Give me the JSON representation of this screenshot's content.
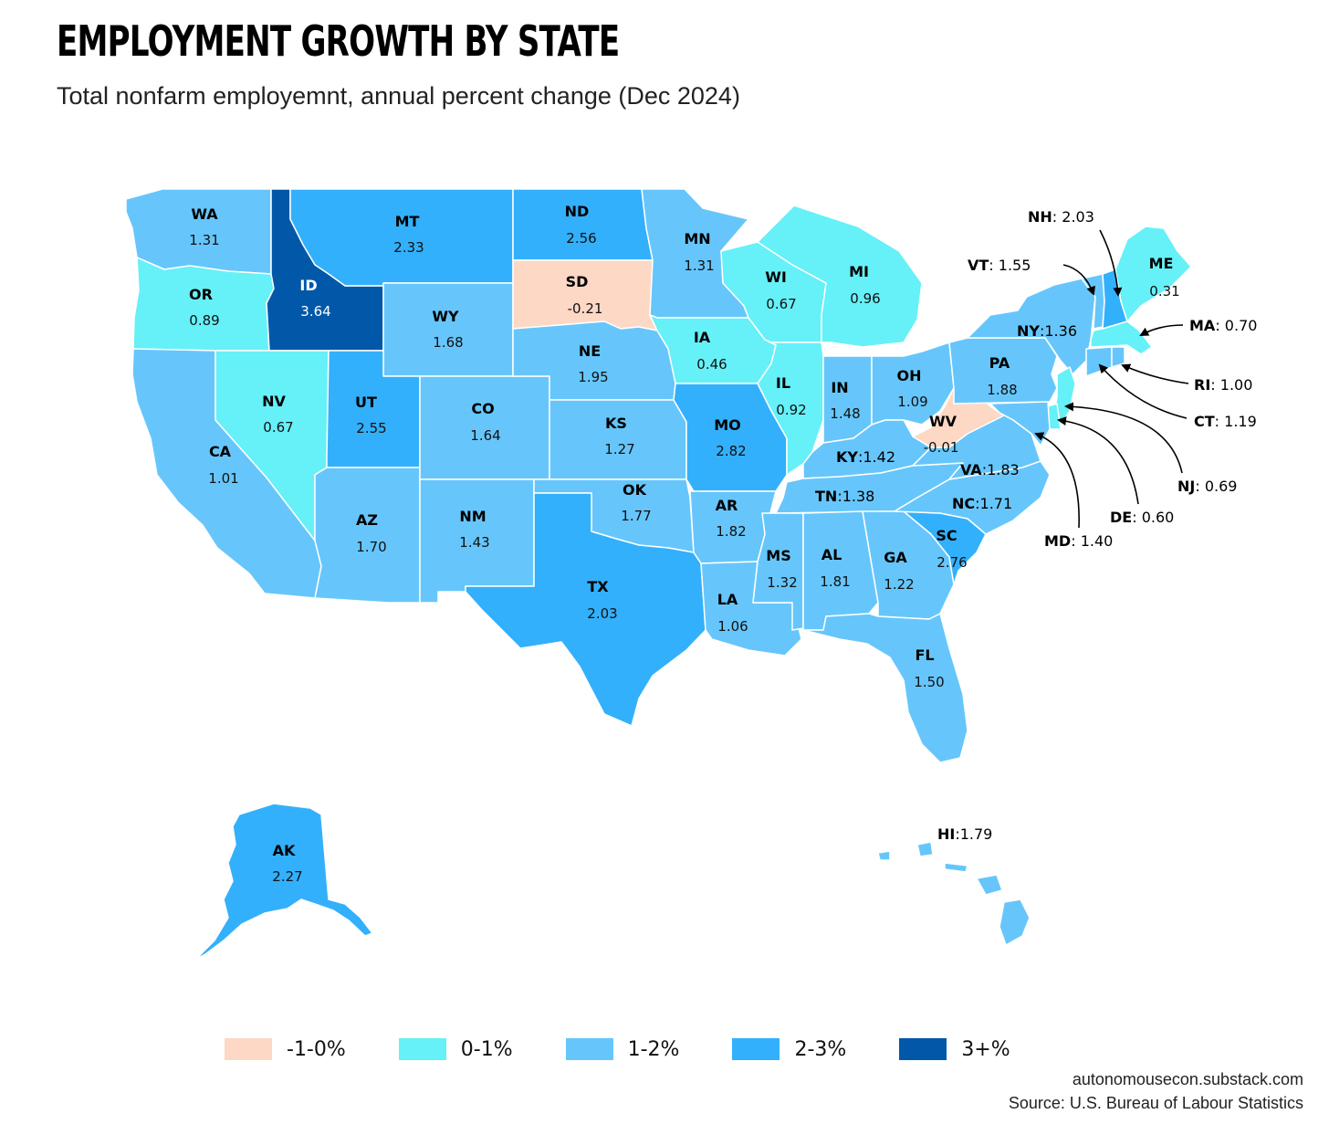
{
  "title": "EMPLOYMENT GROWTH BY STATE",
  "subtitle": "Total nonfarm employemnt, annual percent change (Dec 2024)",
  "colors": {
    "neg": "#fdd8c5",
    "c0_1": "#66f0f8",
    "c1_2": "#66c6fb",
    "c2_3": "#33b0fb",
    "c3p": "#0258a8",
    "border": "#ffffff"
  },
  "legend": [
    {
      "label": "-1-0%",
      "color": "#fdd8c5"
    },
    {
      "label": "0-1%",
      "color": "#66f0f8"
    },
    {
      "label": "1-2%",
      "color": "#66c6fb"
    },
    {
      "label": "2-3%",
      "color": "#33b0fb"
    },
    {
      "label": "3+%",
      "color": "#0258a8"
    }
  ],
  "credit_site": "autonomousecon.substack.com",
  "credit_source": "Source: U.S. Bureau of Labour Statistics",
  "states": {
    "WA": {
      "abbr": "WA",
      "value": "1.31"
    },
    "OR": {
      "abbr": "OR",
      "value": "0.89"
    },
    "CA": {
      "abbr": "CA",
      "value": "1.01"
    },
    "ID": {
      "abbr": "ID",
      "value": "3.64"
    },
    "NV": {
      "abbr": "NV",
      "value": "0.67"
    },
    "MT": {
      "abbr": "MT",
      "value": "2.33"
    },
    "WY": {
      "abbr": "WY",
      "value": "1.68"
    },
    "UT": {
      "abbr": "UT",
      "value": "2.55"
    },
    "AZ": {
      "abbr": "AZ",
      "value": "1.70"
    },
    "CO": {
      "abbr": "CO",
      "value": "1.64"
    },
    "NM": {
      "abbr": "NM",
      "value": "1.43"
    },
    "ND": {
      "abbr": "ND",
      "value": "2.56"
    },
    "SD": {
      "abbr": "SD",
      "value": "-0.21"
    },
    "NE": {
      "abbr": "NE",
      "value": "1.95"
    },
    "KS": {
      "abbr": "KS",
      "value": "1.27"
    },
    "OK": {
      "abbr": "OK",
      "value": "1.77"
    },
    "TX": {
      "abbr": "TX",
      "value": "2.03"
    },
    "MN": {
      "abbr": "MN",
      "value": "1.31"
    },
    "IA": {
      "abbr": "IA",
      "value": "0.46"
    },
    "MO": {
      "abbr": "MO",
      "value": "2.82"
    },
    "AR": {
      "abbr": "AR",
      "value": "1.82"
    },
    "LA": {
      "abbr": "LA",
      "value": "1.06"
    },
    "WI": {
      "abbr": "WI",
      "value": "0.67"
    },
    "IL": {
      "abbr": "IL",
      "value": "0.92"
    },
    "MI": {
      "abbr": "MI",
      "value": "0.96"
    },
    "IN": {
      "abbr": "IN",
      "value": "1.48"
    },
    "OH": {
      "abbr": "OH",
      "value": "1.09"
    },
    "KY": {
      "abbr": "KY",
      "value": "1.42"
    },
    "TN": {
      "abbr": "TN",
      "value": "1.38"
    },
    "MS": {
      "abbr": "MS",
      "value": "1.32"
    },
    "AL": {
      "abbr": "AL",
      "value": "1.81"
    },
    "GA": {
      "abbr": "GA",
      "value": "1.22"
    },
    "FL": {
      "abbr": "FL",
      "value": "1.50"
    },
    "SC": {
      "abbr": "SC",
      "value": "2.76"
    },
    "NC": {
      "abbr": "NC",
      "value": "1.71"
    },
    "VA": {
      "abbr": "VA",
      "value": "1.83"
    },
    "WV": {
      "abbr": "WV",
      "value": "-0.01"
    },
    "PA": {
      "abbr": "PA",
      "value": "1.88"
    },
    "NY": {
      "abbr": "NY",
      "value": "1.36"
    },
    "ME": {
      "abbr": "ME",
      "value": "0.31"
    },
    "VT": {
      "abbr": "VT",
      "value": "1.55"
    },
    "NH": {
      "abbr": "NH",
      "value": "2.03"
    },
    "MA": {
      "abbr": "MA",
      "value": "0.70"
    },
    "RI": {
      "abbr": "RI",
      "value": "1.00"
    },
    "CT": {
      "abbr": "CT",
      "value": "1.19"
    },
    "NJ": {
      "abbr": "NJ",
      "value": "0.69"
    },
    "DE": {
      "abbr": "DE",
      "value": "0.60"
    },
    "MD": {
      "abbr": "MD",
      "value": "1.40"
    },
    "AK": {
      "abbr": "AK",
      "value": "2.27"
    },
    "HI": {
      "abbr": "HI",
      "value": "1.79"
    }
  }
}
